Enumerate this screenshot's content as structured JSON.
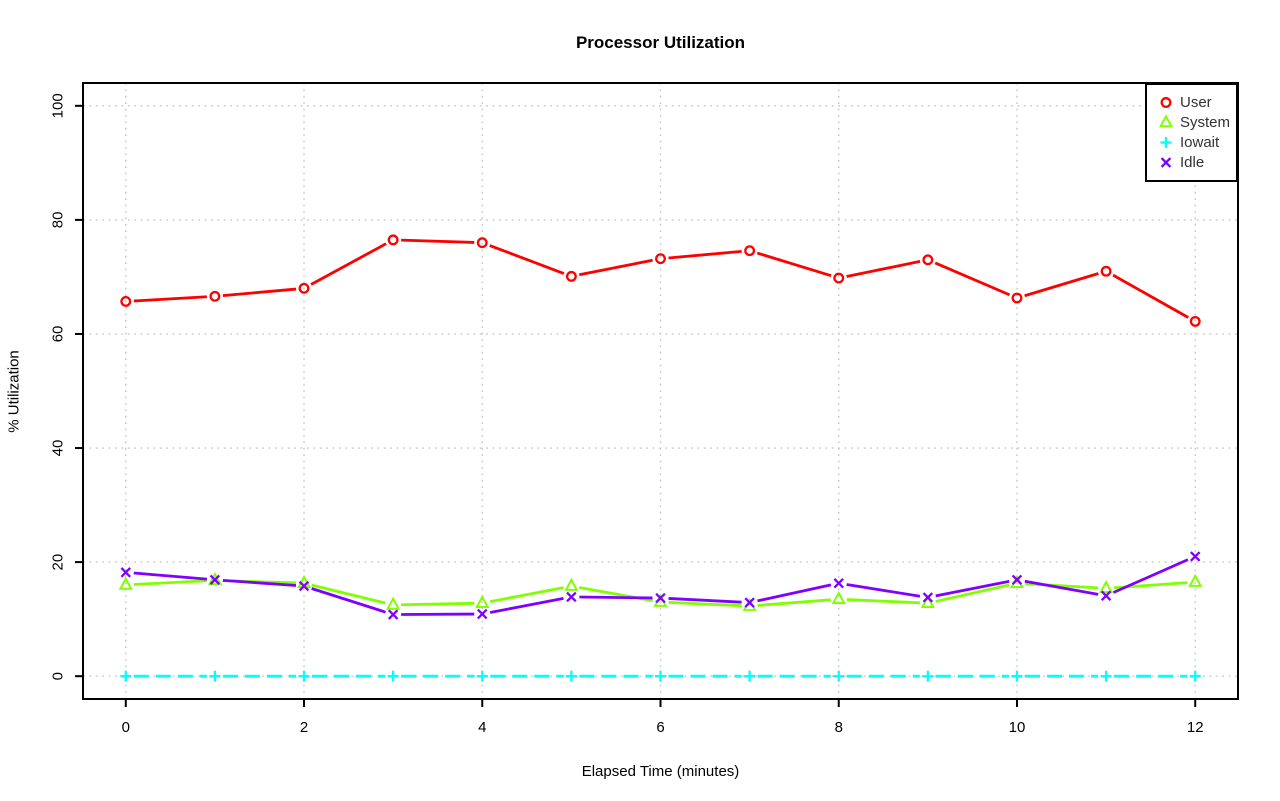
{
  "chart_data": {
    "type": "line",
    "title": "Processor Utilization",
    "xlabel": "Elapsed Time (minutes)",
    "ylabel": "% Utilization",
    "x": [
      0,
      1,
      2,
      3,
      4,
      5,
      6,
      7,
      8,
      9,
      10,
      11,
      12
    ],
    "x_ticks": [
      0,
      2,
      4,
      6,
      8,
      10,
      12
    ],
    "y_ticks": [
      0,
      20,
      40,
      60,
      80,
      100
    ],
    "xlim": [
      0,
      12
    ],
    "ylim": [
      0,
      100
    ],
    "grid": true,
    "grid_style": "dotted",
    "legend_position": "topright",
    "series": [
      {
        "name": "User",
        "color": "#FF0000",
        "marker": "circle",
        "line_style": "solid",
        "values": [
          65.7,
          66.6,
          68.0,
          76.5,
          76.0,
          70.1,
          73.2,
          74.6,
          69.8,
          73.0,
          66.3,
          71.0,
          62.2
        ]
      },
      {
        "name": "System",
        "color": "#80FF00",
        "marker": "triangle",
        "line_style": "solid",
        "values": [
          16.0,
          16.8,
          16.3,
          12.5,
          12.8,
          15.8,
          13.0,
          12.3,
          13.5,
          12.8,
          16.3,
          15.4,
          16.5
        ]
      },
      {
        "name": "Iowait",
        "color": "#00FFFF",
        "marker": "plus",
        "line_style": "dashed",
        "values": [
          0,
          0,
          0,
          0,
          0,
          0,
          0,
          0,
          0,
          0,
          0,
          0,
          0
        ]
      },
      {
        "name": "Idle",
        "color": "#8000FF",
        "marker": "x",
        "line_style": "solid",
        "values": [
          18.2,
          16.9,
          15.8,
          10.8,
          10.9,
          13.9,
          13.7,
          12.9,
          16.3,
          13.8,
          16.9,
          14.1,
          21.0
        ]
      }
    ]
  }
}
